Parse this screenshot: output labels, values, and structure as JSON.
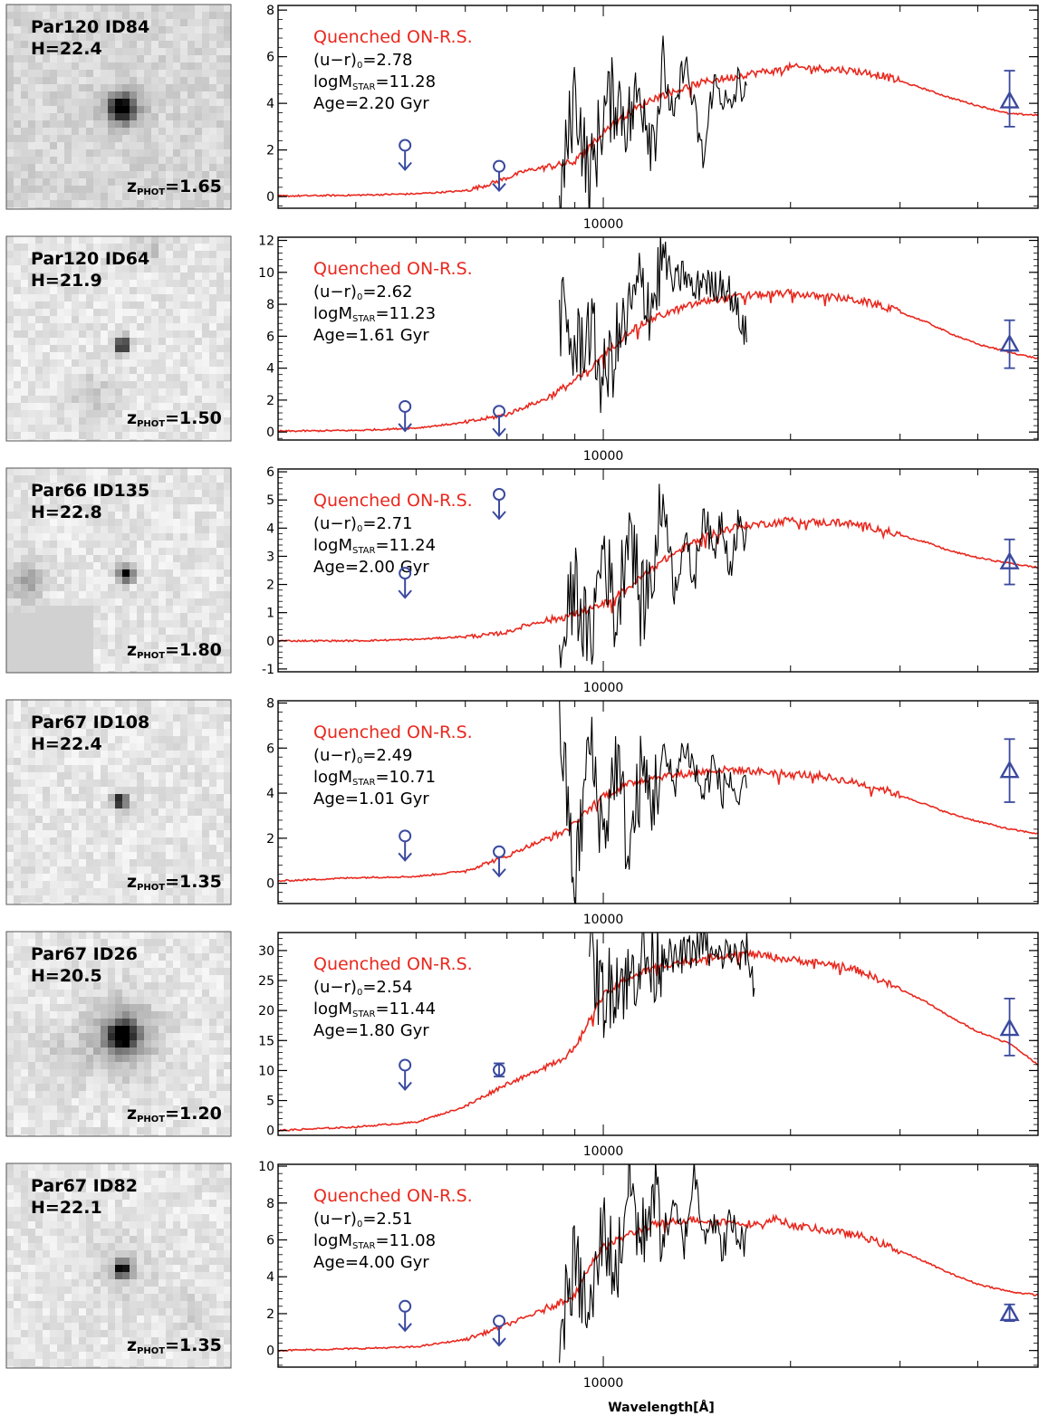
{
  "figure": {
    "xlabel": "Wavelength[Å]"
  },
  "chart_data": [
    {
      "type": "line",
      "stamp": {
        "field": "Par120",
        "id": "ID84",
        "h": "22.4",
        "zphot": "1.65"
      },
      "label": "Quenched ON-R.S.",
      "ur0": "2.78",
      "logm": "11.28",
      "age": "2.20",
      "xscale": "log",
      "xlim": [
        3000,
        50000
      ],
      "xtick_labels": [
        "10000"
      ],
      "ylim": [
        -0.5,
        8.2
      ],
      "yticks": [
        0,
        2,
        4,
        6,
        8
      ],
      "series": [
        {
          "kind": "model",
          "color": "#e8281e",
          "x": [
            3000,
            4000,
            5000,
            6000,
            6500,
            7000,
            7500,
            8000,
            8500,
            9000,
            9500,
            10000,
            11000,
            12000,
            13000,
            14000,
            15000,
            16000,
            17000,
            18000,
            19000,
            20000,
            22000,
            24000,
            26000,
            28000,
            30000,
            33000,
            36000,
            40000,
            45000,
            50000
          ],
          "y": [
            0.02,
            0.06,
            0.12,
            0.25,
            0.5,
            0.8,
            1.1,
            1.25,
            1.35,
            1.5,
            2.1,
            2.8,
            3.6,
            4.2,
            4.5,
            4.8,
            5.0,
            5.1,
            5.25,
            5.35,
            5.4,
            5.55,
            5.5,
            5.45,
            5.35,
            5.2,
            4.95,
            4.6,
            4.25,
            3.9,
            3.55,
            3.5
          ]
        },
        {
          "kind": "grism",
          "color": "#000000",
          "x": [
            8500,
            9000,
            9500,
            10000,
            10500,
            11000,
            11500,
            12000,
            12500,
            13000,
            13500,
            14000,
            14500,
            15000,
            15500,
            16000,
            16500,
            17000
          ],
          "y": [
            -0.4,
            4.6,
            0.5,
            3.6,
            4.4,
            3.2,
            4.7,
            2.6,
            5.4,
            3.1,
            6.0,
            3.7,
            1.4,
            4.9,
            4.4,
            3.6,
            5.0,
            4.2
          ]
        }
      ],
      "photometry": {
        "upper_limits": [
          {
            "x": 4800,
            "y": 2.2
          },
          {
            "x": 6800,
            "y": 1.3
          }
        ],
        "points": [
          {
            "x": 45000,
            "y": 4.1,
            "err": [
              3.0,
              5.4
            ]
          }
        ]
      }
    },
    {
      "type": "line",
      "stamp": {
        "field": "Par120",
        "id": "ID64",
        "h": "21.9",
        "zphot": "1.50"
      },
      "label": "Quenched ON-R.S.",
      "ur0": "2.62",
      "logm": "11.23",
      "age": "1.61",
      "xscale": "log",
      "xlim": [
        3000,
        50000
      ],
      "xtick_labels": [
        "10000"
      ],
      "ylim": [
        -0.5,
        12.2
      ],
      "yticks": [
        0,
        2,
        4,
        6,
        8,
        10,
        12
      ],
      "series": [
        {
          "kind": "model",
          "color": "#e8281e",
          "x": [
            3000,
            4000,
            5000,
            6000,
            6500,
            7000,
            7500,
            8000,
            8500,
            9000,
            9500,
            10000,
            11000,
            12000,
            13000,
            14000,
            15000,
            16000,
            17000,
            18000,
            19000,
            20000,
            22000,
            24000,
            26000,
            28000,
            30000,
            33000,
            36000,
            40000,
            45000,
            50000
          ],
          "y": [
            0.05,
            0.1,
            0.25,
            0.6,
            0.85,
            1.1,
            1.6,
            2.0,
            2.6,
            3.2,
            3.9,
            4.8,
            6.3,
            7.1,
            7.6,
            8.0,
            8.3,
            8.4,
            8.55,
            8.6,
            8.65,
            8.7,
            8.5,
            8.4,
            8.2,
            7.9,
            7.5,
            6.9,
            6.2,
            5.5,
            5.0,
            4.6
          ]
        },
        {
          "kind": "grism",
          "color": "#000000",
          "x": [
            8500,
            9000,
            9500,
            10000,
            10500,
            11000,
            11500,
            12000,
            12500,
            13000,
            13500,
            14000,
            14500,
            15000,
            15500,
            16000,
            16500,
            17000
          ],
          "y": [
            7.6,
            4.9,
            6.6,
            3.0,
            5.4,
            7.2,
            9.3,
            8.0,
            11.2,
            9.1,
            10.0,
            8.6,
            9.8,
            8.9,
            9.5,
            8.7,
            7.3,
            6.0
          ]
        }
      ],
      "photometry": {
        "upper_limits": [
          {
            "x": 4800,
            "y": 1.6
          },
          {
            "x": 6800,
            "y": 1.3
          }
        ],
        "points": [
          {
            "x": 45000,
            "y": 5.5,
            "err": [
              4.0,
              7.0
            ]
          }
        ]
      }
    },
    {
      "type": "line",
      "stamp": {
        "field": "Par66",
        "id": "ID135",
        "h": "22.8",
        "zphot": "1.80"
      },
      "label": "Quenched ON-R.S.",
      "ur0": "2.71",
      "logm": "11.24",
      "age": "2.00",
      "xscale": "log",
      "xlim": [
        3000,
        50000
      ],
      "xtick_labels": [
        "10000"
      ],
      "ylim": [
        -1.1,
        6.1
      ],
      "yticks": [
        -1,
        0,
        1,
        2,
        3,
        4,
        5,
        6
      ],
      "series": [
        {
          "kind": "model",
          "color": "#e8281e",
          "x": [
            3000,
            4000,
            5000,
            6000,
            6500,
            7000,
            7500,
            8000,
            8500,
            9000,
            9500,
            10000,
            11000,
            12000,
            13000,
            14000,
            15000,
            16000,
            17000,
            18000,
            19000,
            20000,
            22000,
            24000,
            26000,
            28000,
            30000,
            33000,
            36000,
            40000,
            45000,
            50000
          ],
          "y": [
            0.0,
            0.0,
            0.05,
            0.15,
            0.2,
            0.3,
            0.55,
            0.7,
            0.8,
            0.95,
            1.1,
            1.3,
            1.9,
            2.6,
            3.1,
            3.5,
            3.8,
            4.0,
            4.1,
            4.15,
            4.2,
            4.3,
            4.2,
            4.2,
            4.1,
            3.95,
            3.75,
            3.5,
            3.2,
            2.95,
            2.75,
            2.6
          ]
        },
        {
          "kind": "grism",
          "color": "#000000",
          "x": [
            8500,
            9000,
            9500,
            10000,
            10500,
            11000,
            11500,
            12000,
            12500,
            13000,
            13500,
            14000,
            14500,
            15000,
            15500,
            16000,
            16500,
            17000
          ],
          "y": [
            -0.8,
            2.1,
            -0.3,
            3.5,
            0.6,
            4.6,
            1.1,
            2.4,
            5.2,
            1.8,
            3.6,
            2.1,
            4.8,
            3.0,
            4.5,
            2.6,
            4.2,
            3.6
          ]
        }
      ],
      "photometry": {
        "upper_limits": [
          {
            "x": 4800,
            "y": 2.4
          },
          {
            "x": 6800,
            "y": 5.2
          }
        ],
        "points": [
          {
            "x": 45000,
            "y": 2.8,
            "err": [
              2.0,
              3.6
            ]
          }
        ]
      }
    },
    {
      "type": "line",
      "stamp": {
        "field": "Par67",
        "id": "ID108",
        "h": "22.4",
        "zphot": "1.35"
      },
      "label": "Quenched ON-R.S.",
      "ur0": "2.49",
      "logm": "10.71",
      "age": "1.01",
      "xscale": "log",
      "xlim": [
        3000,
        50000
      ],
      "xtick_labels": [
        "10000"
      ],
      "ylim": [
        -0.9,
        8.1
      ],
      "yticks": [
        0,
        2,
        4,
        6,
        8
      ],
      "series": [
        {
          "kind": "model",
          "color": "#e8281e",
          "x": [
            3000,
            4000,
            5000,
            6000,
            6500,
            7000,
            7500,
            8000,
            8500,
            9000,
            9500,
            10000,
            11000,
            12000,
            13000,
            14000,
            15000,
            16000,
            17000,
            18000,
            19000,
            20000,
            22000,
            24000,
            26000,
            28000,
            30000,
            33000,
            36000,
            40000,
            45000,
            50000
          ],
          "y": [
            0.1,
            0.25,
            0.3,
            0.55,
            0.9,
            1.2,
            1.6,
            1.9,
            2.2,
            2.6,
            3.3,
            3.9,
            4.4,
            4.7,
            4.8,
            4.9,
            5.0,
            5.05,
            5.0,
            4.95,
            4.9,
            4.85,
            4.8,
            4.6,
            4.4,
            4.2,
            3.9,
            3.5,
            3.1,
            2.75,
            2.4,
            2.2
          ]
        },
        {
          "kind": "grism",
          "color": "#000000",
          "x": [
            8500,
            9000,
            9500,
            10000,
            10500,
            11000,
            11500,
            12000,
            12500,
            13000,
            13500,
            14000,
            14500,
            15000,
            15500,
            16000,
            16500,
            17000
          ],
          "y": [
            7.5,
            -0.3,
            6.4,
            2.0,
            5.7,
            1.1,
            4.9,
            3.7,
            5.6,
            4.4,
            6.2,
            5.1,
            3.8,
            5.4,
            4.0,
            4.7,
            3.5,
            4.2
          ]
        }
      ],
      "photometry": {
        "upper_limits": [
          {
            "x": 4800,
            "y": 2.1
          },
          {
            "x": 6800,
            "y": 1.4
          }
        ],
        "points": [
          {
            "x": 45000,
            "y": 5.0,
            "err": [
              3.6,
              6.4
            ]
          }
        ]
      }
    },
    {
      "type": "line",
      "stamp": {
        "field": "Par67",
        "id": "ID26",
        "h": "20.5",
        "zphot": "1.20"
      },
      "label": "Quenched ON-R.S.",
      "ur0": "2.54",
      "logm": "11.44",
      "age": "1.80",
      "xscale": "log",
      "xlim": [
        3000,
        50000
      ],
      "xtick_labels": [
        "10000"
      ],
      "ylim": [
        -0.8,
        33
      ],
      "yticks": [
        0,
        5,
        10,
        15,
        20,
        25,
        30
      ],
      "series": [
        {
          "kind": "model",
          "color": "#e8281e",
          "x": [
            3000,
            4000,
            5000,
            6000,
            6500,
            7000,
            7500,
            8000,
            8500,
            9000,
            9500,
            10000,
            11000,
            12000,
            13000,
            14000,
            15000,
            16000,
            17000,
            18000,
            19000,
            20000,
            22000,
            24000,
            26000,
            28000,
            30000,
            33000,
            36000,
            40000,
            45000,
            50000
          ],
          "y": [
            0.0,
            0.6,
            1.4,
            4.0,
            6.0,
            7.8,
            9.0,
            10.5,
            11.8,
            13.5,
            18.5,
            22.5,
            25.5,
            27.0,
            28.0,
            28.5,
            29.0,
            29.3,
            29.5,
            29.2,
            28.8,
            28.5,
            28.0,
            27.5,
            26.5,
            25.0,
            23.5,
            21.5,
            19.0,
            16.5,
            14.5,
            11.0
          ]
        },
        {
          "kind": "grism",
          "color": "#000000",
          "x": [
            9500,
            10000,
            10500,
            11000,
            11500,
            12000,
            12500,
            13000,
            13500,
            14000,
            14500,
            15000,
            15500,
            16000,
            16500,
            17000,
            17500
          ],
          "y": [
            29.0,
            22.0,
            26.0,
            24.5,
            29.5,
            27.0,
            30.5,
            28.0,
            29.5,
            30.0,
            31.5,
            28.5,
            29.0,
            30.2,
            28.0,
            30.5,
            23.0
          ]
        }
      ],
      "photometry": {
        "upper_limits": [
          {
            "x": 4800,
            "y": 10.9
          }
        ],
        "points": [
          {
            "x": 6800,
            "y": 10.1,
            "err": [
              9.0,
              11.2
            ],
            "marker": "circle"
          },
          {
            "x": 45000,
            "y": 17.0,
            "err": [
              12.5,
              22.0
            ]
          }
        ]
      }
    },
    {
      "type": "line",
      "stamp": {
        "field": "Par67",
        "id": "ID82",
        "h": "22.1",
        "zphot": "1.35"
      },
      "label": "Quenched ON-R.S.",
      "ur0": "2.51",
      "logm": "11.08",
      "age": "4.00",
      "xscale": "log",
      "xlim": [
        3000,
        50000
      ],
      "xtick_labels": [
        "10000"
      ],
      "ylim": [
        -0.9,
        10.1
      ],
      "yticks": [
        0,
        2,
        4,
        6,
        8,
        10
      ],
      "series": [
        {
          "kind": "model",
          "color": "#e8281e",
          "x": [
            3000,
            4000,
            5000,
            6000,
            6500,
            7000,
            7500,
            8000,
            8500,
            9000,
            9500,
            10000,
            11000,
            12000,
            13000,
            14000,
            15000,
            16000,
            17000,
            18000,
            19000,
            20000,
            22000,
            24000,
            26000,
            28000,
            30000,
            33000,
            36000,
            40000,
            45000,
            50000
          ],
          "y": [
            0.0,
            0.1,
            0.2,
            0.6,
            1.0,
            1.4,
            1.8,
            2.2,
            2.6,
            3.0,
            4.6,
            5.6,
            6.3,
            6.8,
            7.0,
            7.1,
            7.0,
            7.0,
            6.9,
            6.8,
            7.2,
            6.8,
            6.6,
            6.4,
            6.2,
            5.8,
            5.4,
            4.8,
            4.2,
            3.6,
            3.2,
            3.0
          ]
        },
        {
          "kind": "grism",
          "color": "#000000",
          "x": [
            8500,
            9000,
            9500,
            10000,
            10500,
            11000,
            11500,
            12000,
            12500,
            13000,
            13500,
            14000,
            14500,
            15000,
            15500,
            16000,
            16500,
            17000
          ],
          "y": [
            0.8,
            4.8,
            1.5,
            6.9,
            4.0,
            9.6,
            5.6,
            8.9,
            6.3,
            7.6,
            5.8,
            9.7,
            6.6,
            7.2,
            5.4,
            7.0,
            6.1,
            5.9
          ]
        }
      ],
      "photometry": {
        "upper_limits": [
          {
            "x": 4800,
            "y": 2.4
          },
          {
            "x": 6800,
            "y": 1.6
          }
        ],
        "points": [
          {
            "x": 45000,
            "y": 2.0,
            "err": [
              1.6,
              2.5
            ]
          }
        ]
      }
    }
  ]
}
